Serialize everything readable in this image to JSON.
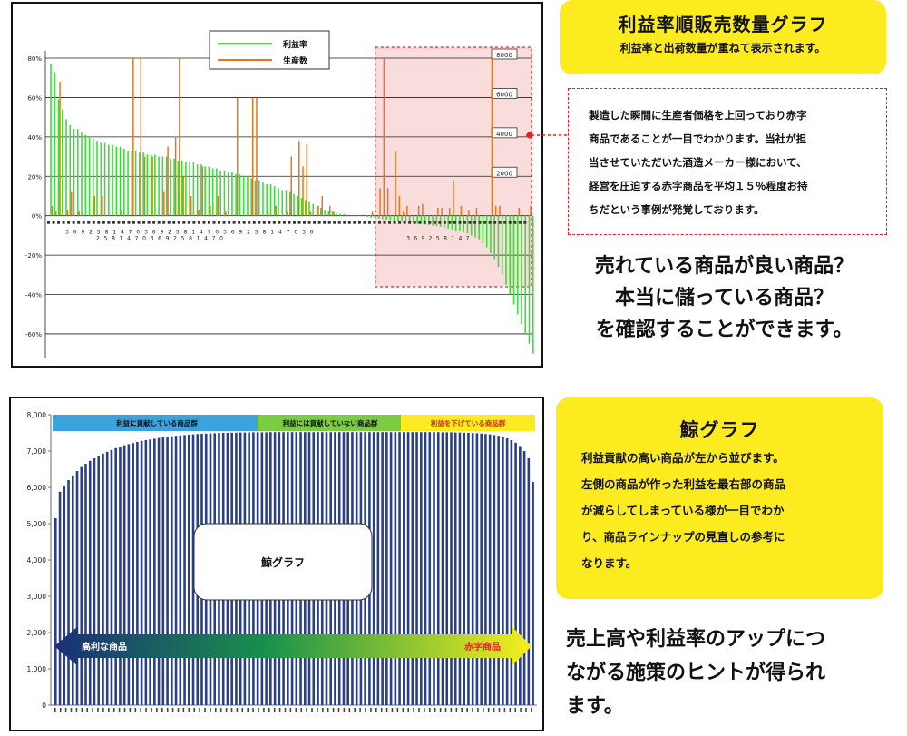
{
  "top_panel": {
    "title": "利益率順販売数量グラフ",
    "subtitle": "利益率と出荷数量が重ねて表示されます。",
    "note_lines": [
      "製造した瞬間に生産者価格を上回っており赤字",
      "商品であることが一目でわかります。当社が担",
      "当させていただいた酒造メーカー様において、",
      "経営を圧迫する赤字商品を平均１５％程度お持",
      "ちだという事例が発覚しております。"
    ],
    "big_lines": [
      "売れている商品が良い商品？",
      "本当に儲っている商品？",
      "を確認することができます。"
    ]
  },
  "bottom_panel": {
    "title": "鯨グラフ",
    "body_lines": [
      "利益貢献の高い商品が左から並びます。",
      "左側の商品が作った利益を最右部の商品",
      "が減らしてしまっている様が一目でわか",
      "り、商品ラインナップの見直しの参考に",
      "なります。"
    ],
    "big_lines": [
      "売上高や利益率のアップにつ",
      "ながる施策のヒントが得られ",
      "ます。"
    ]
  },
  "colors": {
    "highlight_yellow": "#fcec1f",
    "profit_line_green": "#3cdc3c",
    "production_orange": "#e8751a",
    "whale_bar_navy": "#2b3f86",
    "red_dashed": "#e52020"
  },
  "chart_data": [
    {
      "type": "bar",
      "legend": {
        "placement": "top-center",
        "entries": [
          "利益率",
          "生産数"
        ]
      },
      "y_axis_left": {
        "ticks": [
          "80%",
          "60%",
          "40%",
          "20%",
          "0%",
          "-20%",
          "-40%",
          "-60%"
        ],
        "ylim": [
          -0.72,
          0.8
        ]
      },
      "y_axis_right_labels": [
        "8000",
        "6000",
        "4000",
        "2000"
      ],
      "grid": true,
      "series": [
        {
          "name": "利益率",
          "color": "#3cdc3c",
          "values": [
            0.77,
            0.73,
            0.59,
            0.54,
            0.49,
            0.46,
            0.44,
            0.44,
            0.42,
            0.41,
            0.4,
            0.39,
            0.38,
            0.37,
            0.37,
            0.36,
            0.36,
            0.35,
            0.35,
            0.34,
            0.33,
            0.33,
            0.33,
            0.32,
            0.32,
            0.31,
            0.31,
            0.31,
            0.3,
            0.3,
            0.3,
            0.29,
            0.29,
            0.28,
            0.28,
            0.27,
            0.27,
            0.27,
            0.26,
            0.26,
            0.25,
            0.25,
            0.24,
            0.24,
            0.23,
            0.23,
            0.22,
            0.22,
            0.21,
            0.21,
            0.2,
            0.2,
            0.19,
            0.18,
            0.18,
            0.17,
            0.16,
            0.16,
            0.15,
            0.14,
            0.13,
            0.13,
            0.12,
            0.11,
            0.1,
            0.09,
            0.08,
            0.07,
            0.06,
            0.05,
            0.04,
            0.03,
            0.025,
            0.02,
            0.015,
            0.01,
            0.008,
            0.005,
            0.003,
            0.002,
            0.001,
            0.0,
            -0.005,
            -0.01,
            -0.012,
            -0.015,
            -0.017,
            -0.02,
            -0.022,
            -0.025,
            -0.027,
            -0.03,
            -0.032,
            -0.035,
            -0.037,
            -0.04,
            -0.042,
            -0.045,
            -0.047,
            -0.05,
            -0.053,
            -0.056,
            -0.06,
            -0.065,
            -0.07,
            -0.075,
            -0.08,
            -0.085,
            -0.09,
            -0.1,
            -0.11,
            -0.12,
            -0.14,
            -0.16,
            -0.19,
            -0.22,
            -0.26,
            -0.3,
            -0.35,
            -0.4,
            -0.45,
            -0.5,
            -0.55,
            -0.6,
            -0.65,
            -0.7
          ]
        },
        {
          "name": "生産数",
          "color": "#e8751a",
          "values": [
            0.05,
            0.02,
            0.68,
            0.0,
            0.03,
            0.12,
            0.0,
            0.02,
            0.0,
            0.0,
            0.0,
            0.1,
            0.0,
            0.1,
            0.0,
            0.0,
            0.0,
            0.0,
            0.02,
            0.0,
            0.0,
            0.8,
            0.0,
            0.8,
            0.3,
            0.0,
            0.3,
            0.0,
            0.0,
            0.12,
            0.35,
            0.0,
            0.4,
            0.8,
            0.2,
            0.0,
            0.1,
            0.0,
            0.03,
            0.25,
            0.0,
            0.05,
            0.0,
            0.1,
            0.0,
            0.02,
            0.0,
            0.0,
            0.6,
            0.0,
            0.0,
            0.0,
            0.6,
            0.6,
            0.0,
            0.0,
            0.02,
            0.0,
            0.05,
            0.0,
            0.0,
            0.02,
            0.3,
            0.0,
            0.38,
            0.25,
            0.36,
            0.02,
            0.0,
            0.05,
            0.1,
            0.0,
            0.05,
            0.02,
            0.0,
            0.0,
            0.0,
            0.0,
            0.0,
            0.0,
            0.0,
            0.0,
            0.0,
            0.02,
            0.0,
            0.14,
            0.8,
            0.14,
            0.0,
            0.33,
            0.1,
            0.02,
            0.05,
            0.0,
            0.0,
            0.05,
            0.06,
            0.0,
            0.0,
            0.0,
            0.04,
            0.04,
            0.0,
            0.04,
            0.18,
            0.0,
            0.05,
            0.0,
            0.03,
            0.0,
            0.04,
            0.0,
            0.0,
            0.0,
            0.8,
            0.05,
            0.05,
            0.0,
            0.0,
            0.0,
            0.0,
            0.04,
            0.0,
            0.0,
            0.05,
            0.0
          ]
        }
      ],
      "x_tick_label_rows": [
        [
          "3",
          "6",
          "9",
          "2",
          "5",
          "8",
          "1",
          "4",
          "7",
          "0",
          "3",
          "6",
          "9",
          "2",
          "5",
          "8",
          "1",
          "4",
          "7",
          "0",
          "3",
          "6",
          "9",
          "2",
          "5",
          "8",
          "1",
          "4",
          "7",
          "0",
          "3",
          "6"
        ],
        [
          "2",
          "5",
          "8",
          "1",
          "4",
          "7",
          "0",
          "3",
          "6",
          "9",
          "2",
          "5",
          "8",
          "1",
          "4",
          "7",
          "0",
          "3",
          "6",
          "9",
          "2",
          "5",
          "8",
          "1",
          "4",
          "7"
        ]
      ],
      "highlight_region": {
        "description": "赤字商品",
        "from_index": 86,
        "to_index": 125
      }
    },
    {
      "type": "bar",
      "title": "鯨グラフ",
      "y_axis": {
        "ticks": [
          "8,000",
          "7,000",
          "6,000",
          "5,000",
          "4,000",
          "3,000",
          "2,000",
          "1,000",
          "0"
        ],
        "ylim": [
          0,
          8000
        ]
      },
      "bands": [
        "利益に貢献している商品群",
        "利益には貢献していない商品群",
        "利益を下げている商品群"
      ],
      "band_colors": [
        "#3aa3dc",
        "#7ccc42",
        "#fcec1f"
      ],
      "arrow": {
        "left_label": "高利な商品",
        "right_label": "赤字商品"
      },
      "values": [
        5150,
        5880,
        6050,
        6200,
        6330,
        6450,
        6560,
        6650,
        6730,
        6800,
        6870,
        6930,
        6980,
        7030,
        7080,
        7120,
        7160,
        7190,
        7220,
        7250,
        7280,
        7300,
        7320,
        7340,
        7360,
        7380,
        7395,
        7410,
        7420,
        7430,
        7440,
        7450,
        7460,
        7470,
        7475,
        7480,
        7485,
        7490,
        7495,
        7500,
        7500,
        7505,
        7505,
        7510,
        7510,
        7510,
        7515,
        7515,
        7515,
        7515,
        7520,
        7520,
        7520,
        7520,
        7520,
        7520,
        7520,
        7520,
        7520,
        7520,
        7520,
        7520,
        7520,
        7520,
        7520,
        7520,
        7520,
        7520,
        7520,
        7520,
        7520,
        7520,
        7520,
        7520,
        7520,
        7520,
        7520,
        7520,
        7520,
        7520,
        7520,
        7520,
        7520,
        7520,
        7520,
        7520,
        7520,
        7520,
        7520,
        7520,
        7515,
        7515,
        7515,
        7510,
        7510,
        7505,
        7500,
        7495,
        7490,
        7480,
        7470,
        7460,
        7440,
        7420,
        7390,
        7350,
        7300,
        7230,
        7140,
        7000,
        6800,
        6150
      ]
    }
  ]
}
